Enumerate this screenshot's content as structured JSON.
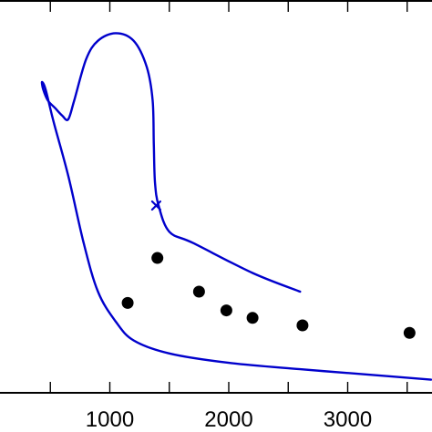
{
  "chart_data": {
    "type": "scatter",
    "title": "",
    "xlabel": "",
    "ylabel": "",
    "xlim": [
      0,
      3700
    ],
    "xticks": [
      1000,
      2000,
      3000
    ],
    "xtick_labels": [
      "1000",
      "2000",
      "3000"
    ],
    "x_minor_ticks": [
      500,
      1500,
      2500,
      3500
    ],
    "y_range_normalized": [
      0,
      1
    ],
    "grid": false,
    "legend": "none",
    "colors": {
      "curve": "#0000cc",
      "points": "#000000",
      "marker": "#0000cc"
    },
    "curves": [
      {
        "points": [
          [
            3700,
            0.035
          ],
          [
            3200,
            0.048
          ],
          [
            2600,
            0.063
          ],
          [
            2000,
            0.08
          ],
          [
            1500,
            0.105
          ],
          [
            1200,
            0.14
          ],
          [
            1050,
            0.19
          ],
          [
            900,
            0.27
          ],
          [
            780,
            0.4
          ],
          [
            650,
            0.58
          ],
          [
            530,
            0.72
          ],
          [
            460,
            0.81
          ],
          [
            430,
            0.83
          ],
          [
            440,
            0.81
          ],
          [
            480,
            0.78
          ],
          [
            540,
            0.76
          ],
          [
            600,
            0.74
          ],
          [
            650,
            0.73
          ],
          [
            700,
            0.78
          ],
          [
            800,
            0.89
          ],
          [
            900,
            0.94
          ],
          [
            1050,
            0.96
          ],
          [
            1200,
            0.94
          ],
          [
            1310,
            0.87
          ],
          [
            1360,
            0.78
          ],
          [
            1370,
            0.66
          ],
          [
            1380,
            0.56
          ],
          [
            1410,
            0.5
          ],
          [
            1500,
            0.43
          ],
          [
            1700,
            0.4
          ],
          [
            2200,
            0.32
          ],
          [
            2600,
            0.27
          ]
        ]
      }
    ],
    "points": [
      {
        "x": 1150,
        "y": 0.24
      },
      {
        "x": 1400,
        "y": 0.36
      },
      {
        "x": 1750,
        "y": 0.27
      },
      {
        "x": 1980,
        "y": 0.22
      },
      {
        "x": 2200,
        "y": 0.2
      },
      {
        "x": 2620,
        "y": 0.18
      },
      {
        "x": 3520,
        "y": 0.16
      }
    ],
    "marker": {
      "type": "x",
      "x": 1390,
      "y": 0.5
    }
  }
}
